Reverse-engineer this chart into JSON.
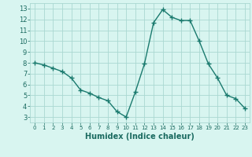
{
  "x": [
    0,
    1,
    2,
    3,
    4,
    5,
    6,
    7,
    8,
    9,
    10,
    11,
    12,
    13,
    14,
    15,
    16,
    17,
    18,
    19,
    20,
    21,
    22,
    23
  ],
  "y": [
    8,
    7.8,
    7.5,
    7.2,
    6.6,
    5.5,
    5.2,
    4.8,
    4.5,
    3.5,
    3.0,
    5.3,
    7.9,
    11.7,
    12.9,
    12.2,
    11.9,
    11.9,
    10.0,
    7.9,
    6.6,
    5.0,
    4.7,
    3.8
  ],
  "xlabel": "Humidex (Indice chaleur)",
  "xlim": [
    -0.5,
    23.5
  ],
  "ylim": [
    2.5,
    13.5
  ],
  "yticks": [
    3,
    4,
    5,
    6,
    7,
    8,
    9,
    10,
    11,
    12,
    13
  ],
  "xticks": [
    0,
    1,
    2,
    3,
    4,
    5,
    6,
    7,
    8,
    9,
    10,
    11,
    12,
    13,
    14,
    15,
    16,
    17,
    18,
    19,
    20,
    21,
    22,
    23
  ],
  "line_color": "#1a7a6e",
  "bg_color": "#d8f5f0",
  "grid_color": "#aad8d2",
  "label_color": "#1a6a60"
}
